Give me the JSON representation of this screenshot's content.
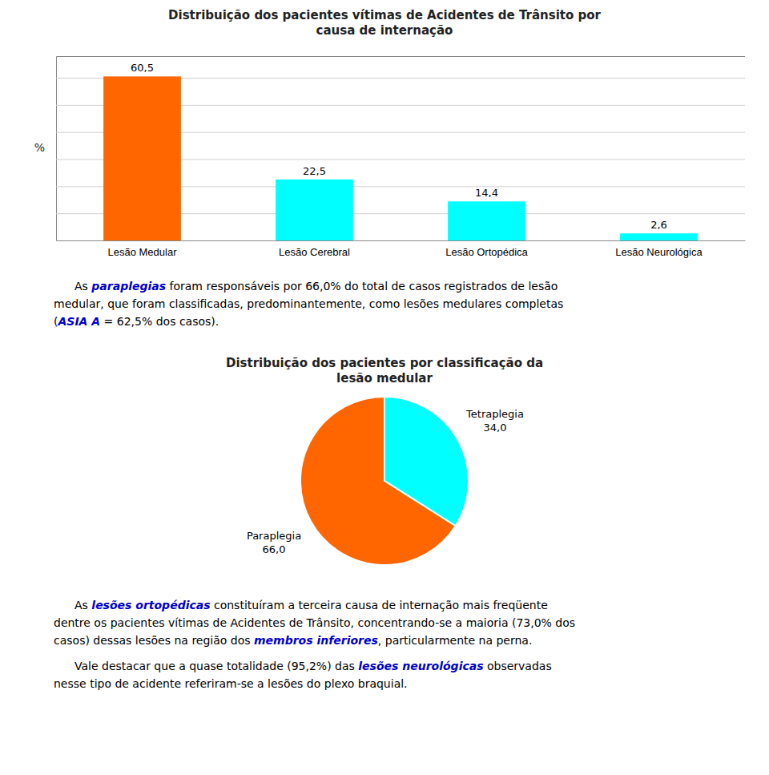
{
  "chart_data": [
    {
      "type": "bar",
      "title": "Distribuição dos pacientes vítimas de Acidentes de Trânsito por\ncausa de internação",
      "categories": [
        "Lesão Medular",
        "Lesão Cerebral",
        "Lesão Ortopédica",
        "Lesão Neurológica"
      ],
      "values": [
        60.5,
        22.5,
        14.4,
        2.6
      ],
      "value_labels": [
        "60,5",
        "22,5",
        "14,4",
        "2,6"
      ],
      "data_labels": true,
      "colors": [
        "#FF6600",
        "#00FFFF",
        "#00FFFF",
        "#00FFFF"
      ],
      "ylabel": "%",
      "ylim": [
        0,
        68
      ],
      "yticks": [
        0,
        10,
        20,
        30,
        40,
        50,
        60
      ],
      "grid": true,
      "tick_labels": "x",
      "annotations": [
        [
          [
            {
              "text": "As "
            },
            {
              "text": "paraplegias",
              "color": "#0000CC"
            },
            {
              "text": " foram responsáveis por 66,0% do total de casos registrados de lesão"
            }
          ],
          [
            {
              "text": "medular, que foram classificadas, predominantemente, como lesões medulares completas"
            }
          ],
          [
            {
              "text": "("
            },
            {
              "text": "ASIA A",
              "color": "#0000CC"
            },
            {
              "text": " = 62,5% dos casos)."
            }
          ]
        ]
      ]
    },
    {
      "type": "pie",
      "title": "Distribuição dos pacientes por classificação da\nlesão medular",
      "categories": [
        "Tetraplegia",
        "Paraplegia"
      ],
      "values": [
        34.0,
        66.0
      ],
      "value_labels": [
        "34,0",
        "66,0"
      ],
      "data_labels": true,
      "colors": [
        "#00FFFF",
        "#FF6600"
      ],
      "annotations": [
        [
          [
            {
              "text": "As "
            },
            {
              "text": "lesões ortopédicas",
              "color": "#0000CC"
            },
            {
              "text": " constituíram a terceira causa de internação mais freqüente"
            }
          ],
          [
            {
              "text": "dentre os pacientes vítimas de Acidentes de Trânsito, concentrando-se a maioria (73,0% dos"
            }
          ],
          [
            {
              "text": "casos) dessas lesões na região dos "
            },
            {
              "text": "membros inferiores",
              "color": "#0000CC"
            },
            {
              "text": ", particularmente na perna."
            }
          ]
        ],
        [
          [
            {
              "text": "Vale destacar que a quase totalidade (95,2%) das "
            },
            {
              "text": "lesões neurológicas",
              "color": "#0000CC"
            },
            {
              "text": " observadas"
            }
          ],
          [
            {
              "text": "nesse tipo de acidente referiram-se a lesões do plexo braquial."
            }
          ]
        ]
      ]
    }
  ]
}
